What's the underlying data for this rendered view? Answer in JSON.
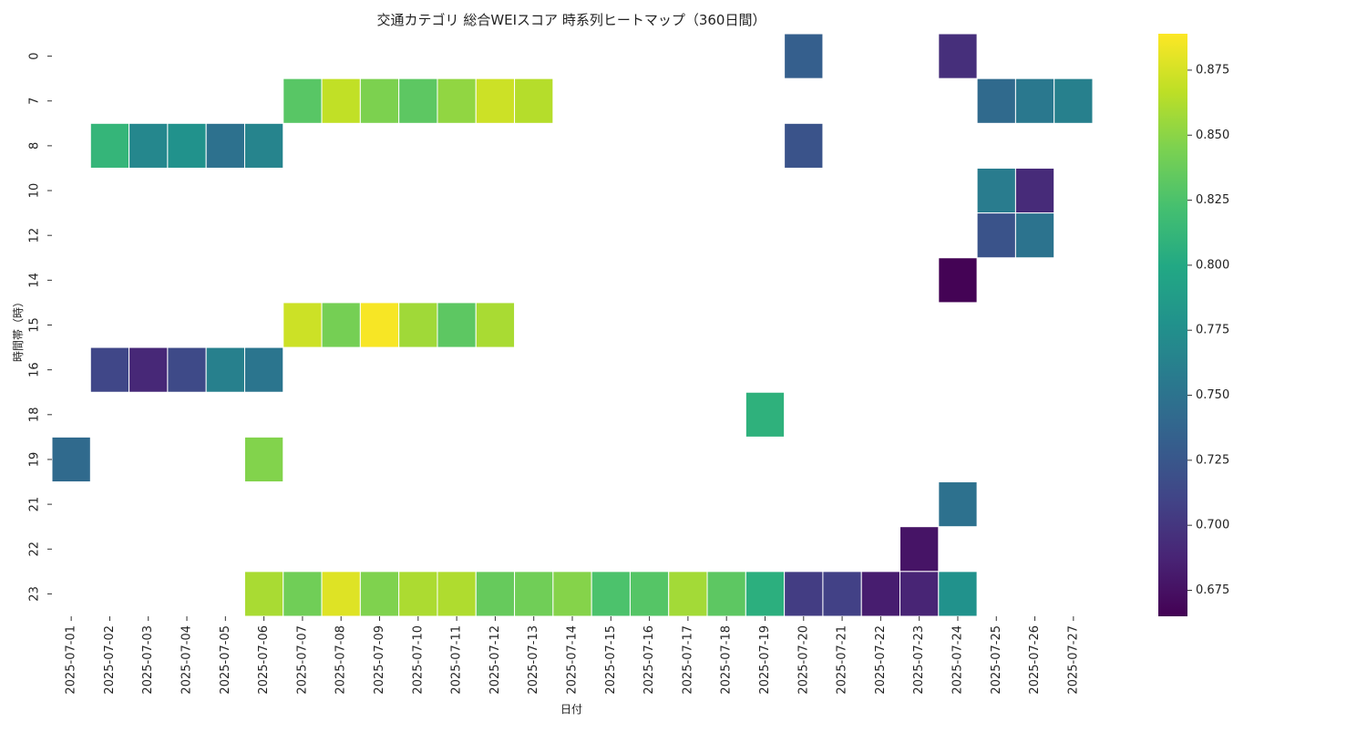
{
  "chart_data": {
    "type": "heatmap",
    "title": "交通カテゴリ 総合WEIスコア 時系列ヒートマップ（360日間）",
    "xlabel": "日付",
    "ylabel": "時間帯（時）",
    "colormap": "viridis",
    "vmin": 0.665,
    "vmax": 0.889,
    "colorbar_ticks": [
      0.675,
      0.7,
      0.725,
      0.75,
      0.775,
      0.8,
      0.825,
      0.85,
      0.875
    ],
    "x": [
      "2025-07-01",
      "2025-07-02",
      "2025-07-03",
      "2025-07-04",
      "2025-07-05",
      "2025-07-06",
      "2025-07-07",
      "2025-07-08",
      "2025-07-09",
      "2025-07-10",
      "2025-07-11",
      "2025-07-12",
      "2025-07-13",
      "2025-07-14",
      "2025-07-15",
      "2025-07-16",
      "2025-07-17",
      "2025-07-18",
      "2025-07-19",
      "2025-07-20",
      "2025-07-21",
      "2025-07-22",
      "2025-07-23",
      "2025-07-24",
      "2025-07-25",
      "2025-07-26",
      "2025-07-27"
    ],
    "y": [
      "0",
      "7",
      "8",
      "10",
      "12",
      "14",
      "15",
      "16",
      "18",
      "19",
      "21",
      "22",
      "23"
    ],
    "cells": [
      {
        "x": "2025-07-20",
        "y": "0",
        "value": 0.732
      },
      {
        "x": "2025-07-24",
        "y": "0",
        "value": 0.695
      },
      {
        "x": "2025-07-07",
        "y": "7",
        "value": 0.83
      },
      {
        "x": "2025-07-08",
        "y": "7",
        "value": 0.868
      },
      {
        "x": "2025-07-09",
        "y": "7",
        "value": 0.845
      },
      {
        "x": "2025-07-10",
        "y": "7",
        "value": 0.832
      },
      {
        "x": "2025-07-11",
        "y": "7",
        "value": 0.852
      },
      {
        "x": "2025-07-12",
        "y": "7",
        "value": 0.872
      },
      {
        "x": "2025-07-13",
        "y": "7",
        "value": 0.864
      },
      {
        "x": "2025-07-25",
        "y": "7",
        "value": 0.742
      },
      {
        "x": "2025-07-26",
        "y": "7",
        "value": 0.755
      },
      {
        "x": "2025-07-27",
        "y": "7",
        "value": 0.762
      },
      {
        "x": "2025-07-02",
        "y": "8",
        "value": 0.812
      },
      {
        "x": "2025-07-03",
        "y": "8",
        "value": 0.768
      },
      {
        "x": "2025-07-04",
        "y": "8",
        "value": 0.778
      },
      {
        "x": "2025-07-05",
        "y": "8",
        "value": 0.748
      },
      {
        "x": "2025-07-06",
        "y": "8",
        "value": 0.765
      },
      {
        "x": "2025-07-20",
        "y": "8",
        "value": 0.722
      },
      {
        "x": "2025-07-25",
        "y": "10",
        "value": 0.758
      },
      {
        "x": "2025-07-26",
        "y": "10",
        "value": 0.692
      },
      {
        "x": "2025-07-25",
        "y": "12",
        "value": 0.722
      },
      {
        "x": "2025-07-26",
        "y": "12",
        "value": 0.75
      },
      {
        "x": "2025-07-24",
        "y": "14",
        "value": 0.666
      },
      {
        "x": "2025-07-07",
        "y": "15",
        "value": 0.872
      },
      {
        "x": "2025-07-08",
        "y": "15",
        "value": 0.842
      },
      {
        "x": "2025-07-09",
        "y": "15",
        "value": 0.887
      },
      {
        "x": "2025-07-10",
        "y": "15",
        "value": 0.857
      },
      {
        "x": "2025-07-11",
        "y": "15",
        "value": 0.832
      },
      {
        "x": "2025-07-12",
        "y": "15",
        "value": 0.86
      },
      {
        "x": "2025-07-02",
        "y": "16",
        "value": 0.712
      },
      {
        "x": "2025-07-03",
        "y": "16",
        "value": 0.69
      },
      {
        "x": "2025-07-04",
        "y": "16",
        "value": 0.715
      },
      {
        "x": "2025-07-05",
        "y": "16",
        "value": 0.762
      },
      {
        "x": "2025-07-06",
        "y": "16",
        "value": 0.752
      },
      {
        "x": "2025-07-19",
        "y": "18",
        "value": 0.808
      },
      {
        "x": "2025-07-01",
        "y": "19",
        "value": 0.742
      },
      {
        "x": "2025-07-06",
        "y": "19",
        "value": 0.847
      },
      {
        "x": "2025-07-24",
        "y": "21",
        "value": 0.748
      },
      {
        "x": "2025-07-23",
        "y": "22",
        "value": 0.677
      },
      {
        "x": "2025-07-06",
        "y": "23",
        "value": 0.86
      },
      {
        "x": "2025-07-07",
        "y": "23",
        "value": 0.84
      },
      {
        "x": "2025-07-08",
        "y": "23",
        "value": 0.878
      },
      {
        "x": "2025-07-09",
        "y": "23",
        "value": 0.846
      },
      {
        "x": "2025-07-10",
        "y": "23",
        "value": 0.861
      },
      {
        "x": "2025-07-11",
        "y": "23",
        "value": 0.862
      },
      {
        "x": "2025-07-12",
        "y": "23",
        "value": 0.836
      },
      {
        "x": "2025-07-13",
        "y": "23",
        "value": 0.84
      },
      {
        "x": "2025-07-14",
        "y": "23",
        "value": 0.848
      },
      {
        "x": "2025-07-15",
        "y": "23",
        "value": 0.825
      },
      {
        "x": "2025-07-16",
        "y": "23",
        "value": 0.829
      },
      {
        "x": "2025-07-17",
        "y": "23",
        "value": 0.858
      },
      {
        "x": "2025-07-18",
        "y": "23",
        "value": 0.832
      },
      {
        "x": "2025-07-19",
        "y": "23",
        "value": 0.806
      },
      {
        "x": "2025-07-20",
        "y": "23",
        "value": 0.705
      },
      {
        "x": "2025-07-21",
        "y": "23",
        "value": 0.708
      },
      {
        "x": "2025-07-22",
        "y": "23",
        "value": 0.683
      },
      {
        "x": "2025-07-23",
        "y": "23",
        "value": 0.688
      },
      {
        "x": "2025-07-24",
        "y": "23",
        "value": 0.778
      }
    ]
  }
}
